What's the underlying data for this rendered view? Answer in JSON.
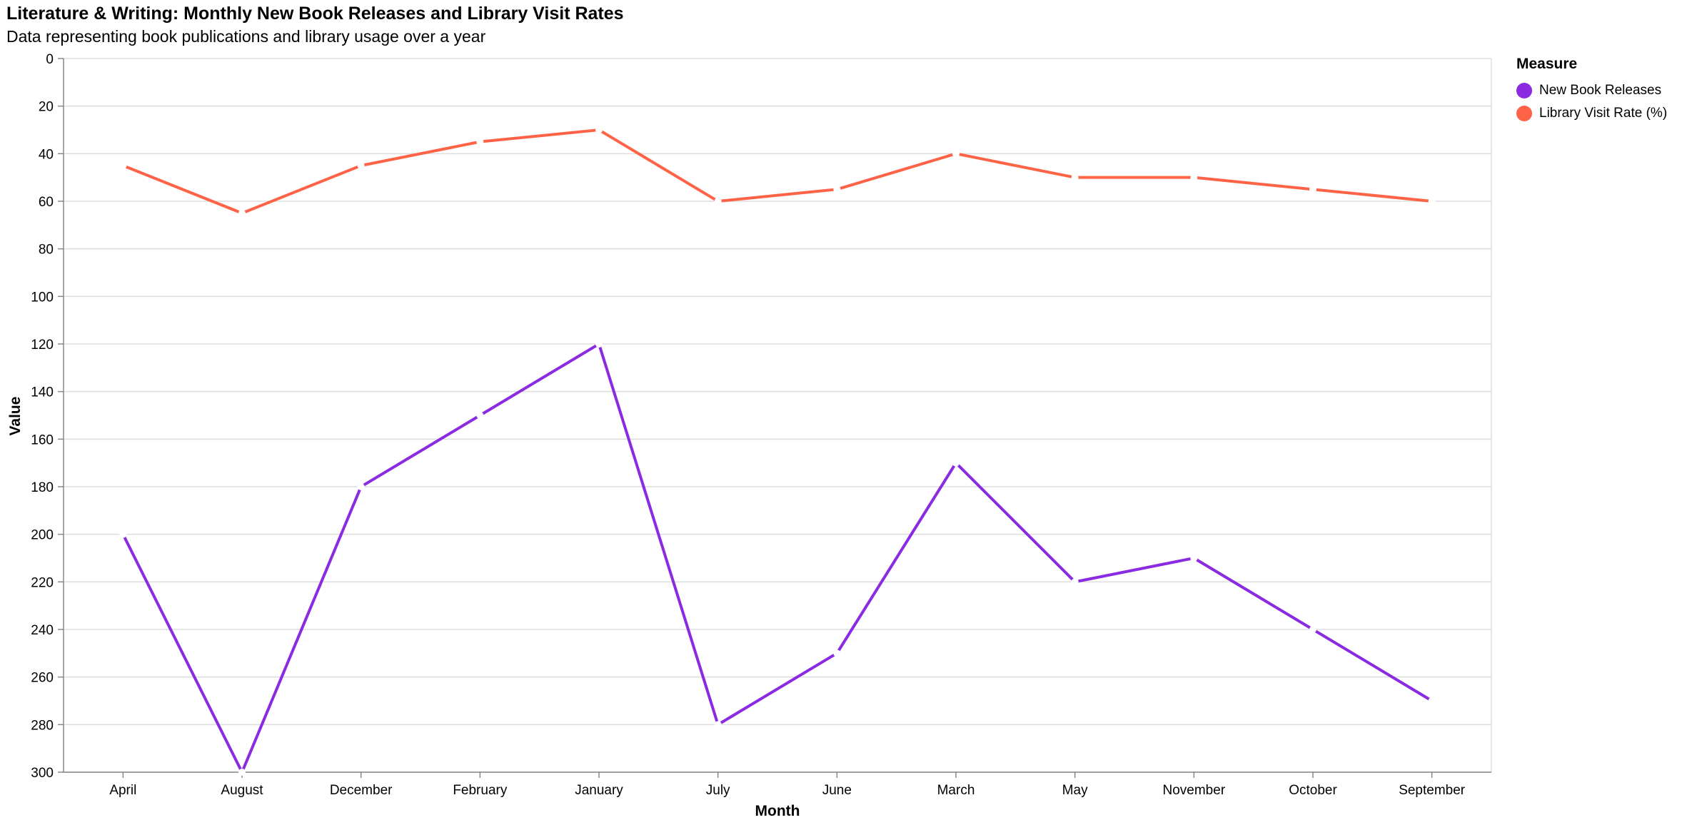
{
  "chart_data": {
    "type": "line",
    "title": "Literature & Writing: Monthly New Book Releases and Library Visit Rates",
    "subtitle": "Data representing book publications and library usage over a year",
    "xlabel": "Month",
    "ylabel": "Value",
    "categories": [
      "April",
      "August",
      "December",
      "February",
      "January",
      "July",
      "June",
      "March",
      "May",
      "November",
      "October",
      "September"
    ],
    "ylim": [
      0,
      300
    ],
    "y_reversed": true,
    "yticks": [
      0,
      20,
      40,
      60,
      80,
      100,
      120,
      140,
      160,
      180,
      200,
      220,
      240,
      260,
      280,
      300
    ],
    "grid": true,
    "legend_title": "Measure",
    "legend_position": "right",
    "series": [
      {
        "name": "New Book Releases",
        "color": "#8a2be2",
        "values": [
          200,
          300,
          180,
          150,
          120,
          280,
          250,
          170,
          220,
          210,
          240,
          270
        ]
      },
      {
        "name": "Library Visit Rate (%)",
        "color": "#ff6347",
        "values": [
          45,
          65,
          45,
          35,
          30,
          60,
          55,
          40,
          50,
          50,
          55,
          60
        ]
      }
    ]
  }
}
